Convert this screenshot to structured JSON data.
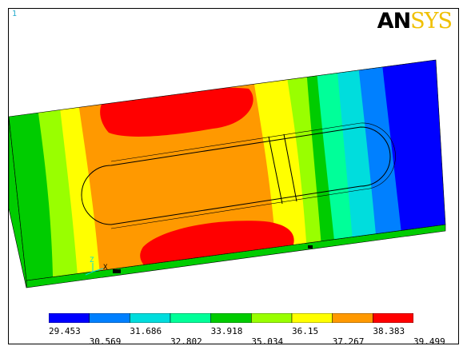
{
  "window": {
    "number": "1"
  },
  "logo": {
    "part1": "AN",
    "part2": "SYS"
  },
  "triad": {
    "z_label": "Z",
    "x_label": "X"
  },
  "legend": {
    "colors": [
      "#0000ff",
      "#0080ff",
      "#00dddd",
      "#00ff99",
      "#00cc00",
      "#99ff00",
      "#ffff00",
      "#ff9900",
      "#ff0000"
    ],
    "upper_ticks": [
      "29.453",
      "31.686",
      "33.918",
      "36.15",
      "38.383"
    ],
    "lower_ticks": [
      "30.569",
      "32.802",
      "35.034",
      "37.267",
      "39.499"
    ]
  }
}
